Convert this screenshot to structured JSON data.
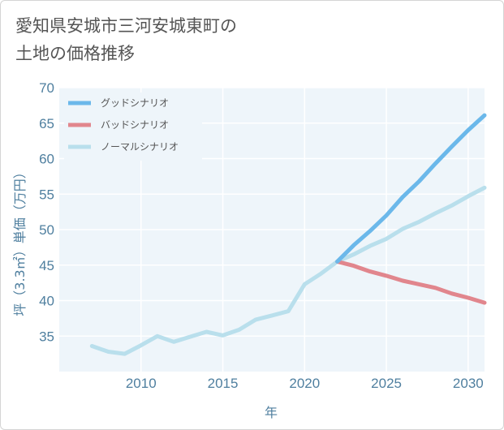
{
  "title_line1": "愛知県安城市三河安城東町の",
  "title_line2": "土地の価格推移",
  "chart_data": {
    "type": "line",
    "title": "愛知県安城市三河安城東町の土地の価格推移",
    "xlabel": "年",
    "ylabel": "坪（3.3㎡）単価（万円）",
    "xlim": [
      2005,
      2031
    ],
    "ylim": [
      30,
      70
    ],
    "xticks": [
      2010,
      2015,
      2020,
      2025,
      2030
    ],
    "yticks": [
      35,
      40,
      45,
      50,
      55,
      60,
      65,
      70
    ],
    "grid": true,
    "legend_position": "top-left",
    "series": [
      {
        "name": "グッドシナリオ",
        "color": "#6bb8ea",
        "x": [
          2022,
          2023,
          2024,
          2025,
          2026,
          2027,
          2028,
          2029,
          2030,
          2031
        ],
        "y": [
          45.5,
          47.8,
          49.8,
          52.0,
          54.6,
          56.8,
          59.3,
          61.7,
          64.0,
          66.1
        ]
      },
      {
        "name": "バッドシナリオ",
        "color": "#e1868d",
        "x": [
          2022,
          2023,
          2024,
          2025,
          2026,
          2027,
          2028,
          2029,
          2030,
          2031
        ],
        "y": [
          45.5,
          44.9,
          44.1,
          43.5,
          42.8,
          42.3,
          41.8,
          41.0,
          40.4,
          39.7
        ]
      },
      {
        "name": "ノーマルシナリオ",
        "color": "#b9dfec",
        "x": [
          2007,
          2008,
          2009,
          2010,
          2011,
          2012,
          2013,
          2014,
          2015,
          2016,
          2017,
          2018,
          2019,
          2020,
          2021,
          2022,
          2023,
          2024,
          2025,
          2026,
          2027,
          2028,
          2029,
          2030,
          2031
        ],
        "y": [
          33.6,
          32.8,
          32.5,
          33.7,
          35.0,
          34.2,
          34.9,
          35.6,
          35.1,
          35.9,
          37.3,
          37.9,
          38.5,
          42.3,
          43.8,
          45.5,
          46.5,
          47.7,
          48.7,
          50.1,
          51.1,
          52.3,
          53.4,
          54.7,
          55.9
        ]
      }
    ]
  }
}
